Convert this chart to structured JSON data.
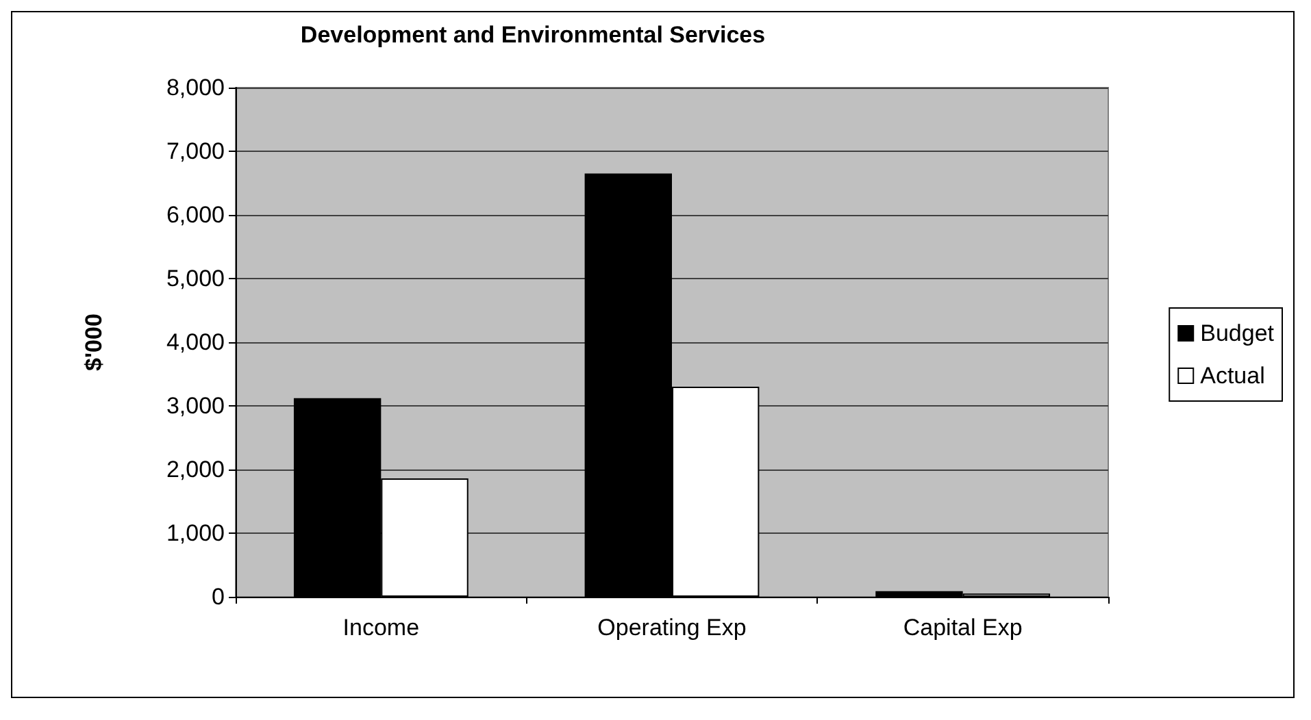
{
  "chart_data": {
    "type": "bar",
    "title": "Development and Environmental Services",
    "ylabel": "$'000",
    "categories": [
      "Income",
      "Operating Exp",
      "Capital Exp"
    ],
    "series": [
      {
        "name": "Budget",
        "color": "#000000",
        "values": [
          3120,
          6650,
          90
        ]
      },
      {
        "name": "Actual",
        "color": "#ffffff",
        "values": [
          1860,
          3300,
          50
        ]
      }
    ],
    "ylim": [
      0,
      8000
    ],
    "yticks": [
      0,
      {
        "value": 1000,
        "label": "1,000"
      },
      {
        "value": 2000,
        "label": "2,000"
      },
      {
        "value": 3000,
        "label": "3,000"
      },
      {
        "value": 4000,
        "label": "4,000"
      },
      {
        "value": 5000,
        "label": "5,000"
      },
      {
        "value": 6000,
        "label": "6,000"
      },
      {
        "value": 7000,
        "label": "7,000"
      },
      {
        "value": 8000,
        "label": "8,000"
      }
    ],
    "grid": "y",
    "legend": "right"
  }
}
